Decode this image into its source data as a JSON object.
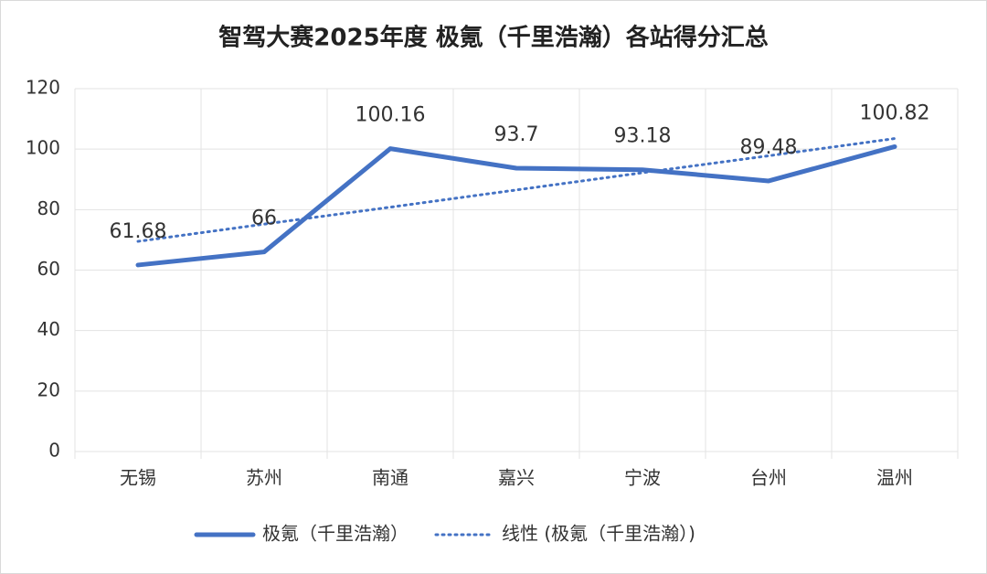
{
  "chart_data": {
    "type": "line",
    "title": "智驾大赛2025年度 极氪（千里浩瀚）各站得分汇总",
    "categories": [
      "无锡",
      "苏州",
      "南通",
      "嘉兴",
      "宁波",
      "台州",
      "温州"
    ],
    "series": [
      {
        "name": "极氪（千里浩瀚）",
        "color": "#4472c4",
        "values": [
          61.68,
          66,
          100.16,
          93.7,
          93.18,
          89.48,
          100.82
        ],
        "style": "solid",
        "data_labels": true
      },
      {
        "name": "线性 (极氪（千里浩瀚）)",
        "color": "#4472c4",
        "values": [
          69.5,
          75.2,
          80.8,
          86.5,
          92.2,
          97.8,
          103.5
        ],
        "style": "dotted",
        "data_labels": false
      }
    ],
    "ylim": [
      0,
      120
    ],
    "yticks": [
      0,
      20,
      40,
      60,
      80,
      100,
      120
    ],
    "grid": true,
    "legend": "bottom"
  }
}
